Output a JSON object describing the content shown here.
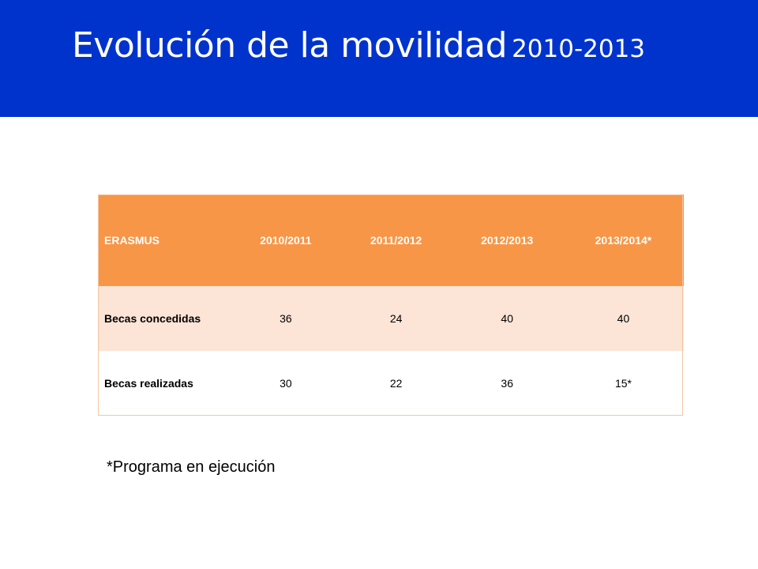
{
  "slide": {
    "title_main": "Evolución de la movilidad",
    "title_years": "2010-2013",
    "header_color": "#0033cc",
    "accent_color": "#f79646",
    "band_color": "#fce4d6"
  },
  "table": {
    "headers": [
      "ERASMUS",
      "2010/2011",
      "2011/2012",
      "2012/2013",
      "2013/2014*"
    ],
    "rows": [
      {
        "label": "Becas concedidas",
        "values": [
          "36",
          "24",
          "40",
          "40"
        ]
      },
      {
        "label": "Becas realizadas",
        "values": [
          "30",
          "22",
          "36",
          "15*"
        ]
      }
    ]
  },
  "footnote": "*Programa en ejecución"
}
